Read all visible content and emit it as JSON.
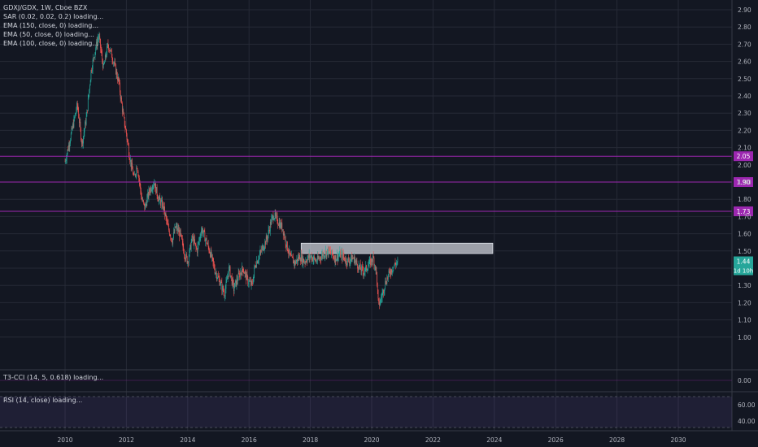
{
  "legend": {
    "symbol": "GDXJ/GDX, 1W, Cboe BZX",
    "indicators": [
      "SAR (0.02, 0.02, 0.2) loading...",
      "EMA (150, close, 0) loading...",
      "EMA (50, close, 0) loading...",
      "EMA (100, close, 0) loading..."
    ]
  },
  "price_axis": {
    "ticks": [
      "2.90",
      "2.80",
      "2.70",
      "2.60",
      "2.50",
      "2.40",
      "2.30",
      "2.20",
      "2.10",
      "2.00",
      "1.90",
      "1.80",
      "1.70",
      "1.60",
      "1.50",
      "1.40",
      "1.30",
      "1.20",
      "1.10",
      "1.00"
    ]
  },
  "time_axis": {
    "ticks": [
      "2010",
      "2012",
      "2014",
      "2016",
      "2018",
      "2020",
      "2022",
      "2024",
      "2026",
      "2028",
      "2030"
    ]
  },
  "horizontal_lines": [
    {
      "label": "2.05",
      "color": "#9c27b0"
    },
    {
      "label": "1.90",
      "color": "#9c27b0"
    },
    {
      "label": "1.73",
      "color": "#9c27b0"
    }
  ],
  "last_price": {
    "label": "1.44",
    "countdown": "1d 10h",
    "color": "#26a69a"
  },
  "cci_pane": {
    "label": "T3-CCI (14, 5, 0.618) loading...",
    "tick": "0.00"
  },
  "rsi_pane": {
    "label": "RSI (14, close) loading...",
    "ticks": [
      "60.00",
      "40.00"
    ]
  },
  "colors": {
    "background": "#131722",
    "grid": "#262a36",
    "up": "#26a69a",
    "down": "#ef5350",
    "level": "#9c27b0",
    "zone": "#d1d4dc"
  },
  "chart_data": {
    "type": "candlestick",
    "x_range": [
      2009.5,
      2031.5
    ],
    "y_range": [
      0.96,
      2.93
    ],
    "zone": {
      "x": [
        2017.7,
        2023.95
      ],
      "y": [
        1.485,
        1.545
      ]
    },
    "path_points": [
      [
        2010.0,
        2.02
      ],
      [
        2010.2,
        2.18
      ],
      [
        2010.4,
        2.35
      ],
      [
        2010.55,
        2.12
      ],
      [
        2010.7,
        2.28
      ],
      [
        2010.85,
        2.55
      ],
      [
        2011.0,
        2.68
      ],
      [
        2011.1,
        2.75
      ],
      [
        2011.25,
        2.56
      ],
      [
        2011.4,
        2.7
      ],
      [
        2011.55,
        2.62
      ],
      [
        2011.75,
        2.48
      ],
      [
        2011.9,
        2.28
      ],
      [
        2012.0,
        2.18
      ],
      [
        2012.1,
        2.05
      ],
      [
        2012.25,
        1.92
      ],
      [
        2012.35,
        2.0
      ],
      [
        2012.5,
        1.8
      ],
      [
        2012.6,
        1.75
      ],
      [
        2012.75,
        1.85
      ],
      [
        2012.9,
        1.9
      ],
      [
        2013.05,
        1.8
      ],
      [
        2013.2,
        1.76
      ],
      [
        2013.35,
        1.64
      ],
      [
        2013.5,
        1.56
      ],
      [
        2013.6,
        1.64
      ],
      [
        2013.75,
        1.6
      ],
      [
        2013.9,
        1.48
      ],
      [
        2014.0,
        1.44
      ],
      [
        2014.15,
        1.58
      ],
      [
        2014.3,
        1.5
      ],
      [
        2014.45,
        1.63
      ],
      [
        2014.6,
        1.56
      ],
      [
        2014.75,
        1.48
      ],
      [
        2014.9,
        1.38
      ],
      [
        2015.05,
        1.32
      ],
      [
        2015.2,
        1.25
      ],
      [
        2015.35,
        1.4
      ],
      [
        2015.5,
        1.28
      ],
      [
        2015.65,
        1.35
      ],
      [
        2015.8,
        1.4
      ],
      [
        2015.95,
        1.33
      ],
      [
        2016.1,
        1.3
      ],
      [
        2016.2,
        1.42
      ],
      [
        2016.35,
        1.48
      ],
      [
        2016.5,
        1.54
      ],
      [
        2016.6,
        1.58
      ],
      [
        2016.7,
        1.66
      ],
      [
        2016.8,
        1.71
      ],
      [
        2016.95,
        1.67
      ],
      [
        2017.1,
        1.63
      ],
      [
        2017.2,
        1.55
      ],
      [
        2017.35,
        1.46
      ],
      [
        2017.5,
        1.43
      ],
      [
        2017.65,
        1.47
      ],
      [
        2017.8,
        1.44
      ],
      [
        2018.0,
        1.47
      ],
      [
        2018.2,
        1.44
      ],
      [
        2018.4,
        1.48
      ],
      [
        2018.6,
        1.5
      ],
      [
        2018.8,
        1.46
      ],
      [
        2019.0,
        1.48
      ],
      [
        2019.2,
        1.44
      ],
      [
        2019.4,
        1.46
      ],
      [
        2019.6,
        1.4
      ],
      [
        2019.75,
        1.38
      ],
      [
        2019.9,
        1.42
      ],
      [
        2020.05,
        1.46
      ],
      [
        2020.15,
        1.38
      ],
      [
        2020.22,
        1.18
      ],
      [
        2020.3,
        1.22
      ],
      [
        2020.45,
        1.32
      ],
      [
        2020.6,
        1.38
      ],
      [
        2020.75,
        1.42
      ],
      [
        2020.85,
        1.44
      ]
    ]
  }
}
